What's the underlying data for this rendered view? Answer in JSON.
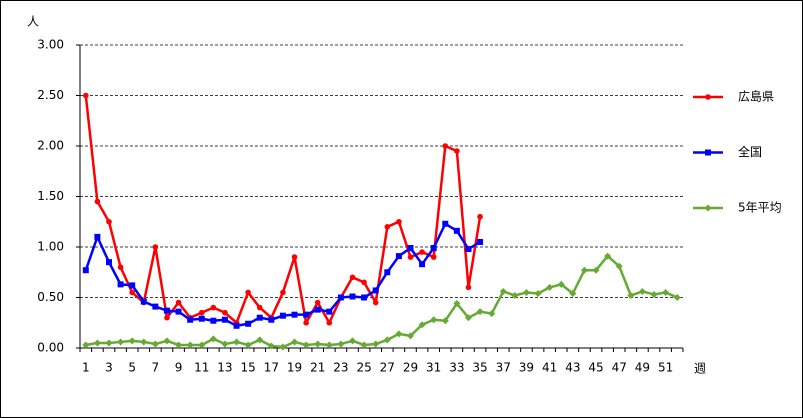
{
  "chart_data": {
    "type": "line",
    "y_label": "人",
    "x_label": "週",
    "categories": [
      "1",
      null,
      "3",
      null,
      "5",
      null,
      "7",
      null,
      "9",
      null,
      "11",
      null,
      "13",
      null,
      "15",
      null,
      "17",
      null,
      "19",
      null,
      "21",
      null,
      "23",
      null,
      "25",
      null,
      "27",
      null,
      "29",
      null,
      "31",
      null,
      "33",
      null,
      "35",
      null,
      "37",
      null,
      "39",
      null,
      "41",
      null,
      "43",
      null,
      "45",
      null,
      "47",
      null,
      "49",
      null,
      "51",
      null
    ],
    "ylim": [
      0,
      3
    ],
    "yticks": [
      {
        "value": 0,
        "label": "0.00"
      },
      {
        "value": 0.5,
        "label": "0.50"
      },
      {
        "value": 1,
        "label": "1.00"
      },
      {
        "value": 1.5,
        "label": "1.50"
      },
      {
        "value": 2,
        "label": "2.00"
      },
      {
        "value": 2.5,
        "label": "2.50"
      },
      {
        "value": 3,
        "label": "3.00"
      }
    ],
    "grid": true,
    "legend": "right",
    "series": [
      {
        "name": "広島県",
        "color": "#ff0000",
        "marker": "circle",
        "values": [
          2.5,
          1.45,
          1.25,
          0.8,
          0.55,
          0.45,
          1.0,
          0.3,
          0.45,
          0.3,
          0.35,
          0.4,
          0.35,
          0.25,
          0.55,
          0.4,
          0.3,
          0.55,
          0.9,
          0.25,
          0.45,
          0.25,
          0.5,
          0.7,
          0.65,
          0.45,
          1.2,
          1.25,
          0.9,
          0.95,
          0.9,
          2.0,
          1.95,
          0.6,
          1.3,
          null,
          null,
          null,
          null,
          null,
          null,
          null,
          null,
          null,
          null,
          null,
          null,
          null,
          null,
          null,
          null,
          null
        ]
      },
      {
        "name": "全国",
        "color": "#0000ff",
        "marker": "square",
        "values": [
          0.77,
          1.1,
          0.85,
          0.63,
          0.62,
          0.46,
          0.41,
          0.37,
          0.36,
          0.28,
          0.29,
          0.27,
          0.28,
          0.22,
          0.24,
          0.3,
          0.28,
          0.32,
          0.33,
          0.33,
          0.38,
          0.36,
          0.5,
          0.51,
          0.5,
          0.57,
          0.75,
          0.91,
          0.99,
          0.83,
          0.99,
          1.23,
          1.16,
          0.98,
          1.05,
          null,
          null,
          null,
          null,
          null,
          null,
          null,
          null,
          null,
          null,
          null,
          null,
          null,
          null,
          null,
          null,
          null
        ]
      },
      {
        "name": "5年平均",
        "color": "#66aa33",
        "marker": "diamond",
        "values": [
          0.03,
          0.05,
          0.05,
          0.06,
          0.07,
          0.06,
          0.04,
          0.07,
          0.03,
          0.03,
          0.03,
          0.09,
          0.04,
          0.06,
          0.03,
          0.08,
          0.02,
          0.01,
          0.06,
          0.03,
          0.04,
          0.03,
          0.04,
          0.07,
          0.03,
          0.04,
          0.08,
          0.14,
          0.12,
          0.23,
          0.28,
          0.27,
          0.44,
          0.3,
          0.36,
          0.34,
          0.56,
          0.52,
          0.55,
          0.54,
          0.6,
          0.63,
          0.54,
          0.77,
          0.77,
          0.91,
          0.81,
          0.52,
          0.56,
          0.53,
          0.55,
          0.5
        ]
      }
    ]
  }
}
